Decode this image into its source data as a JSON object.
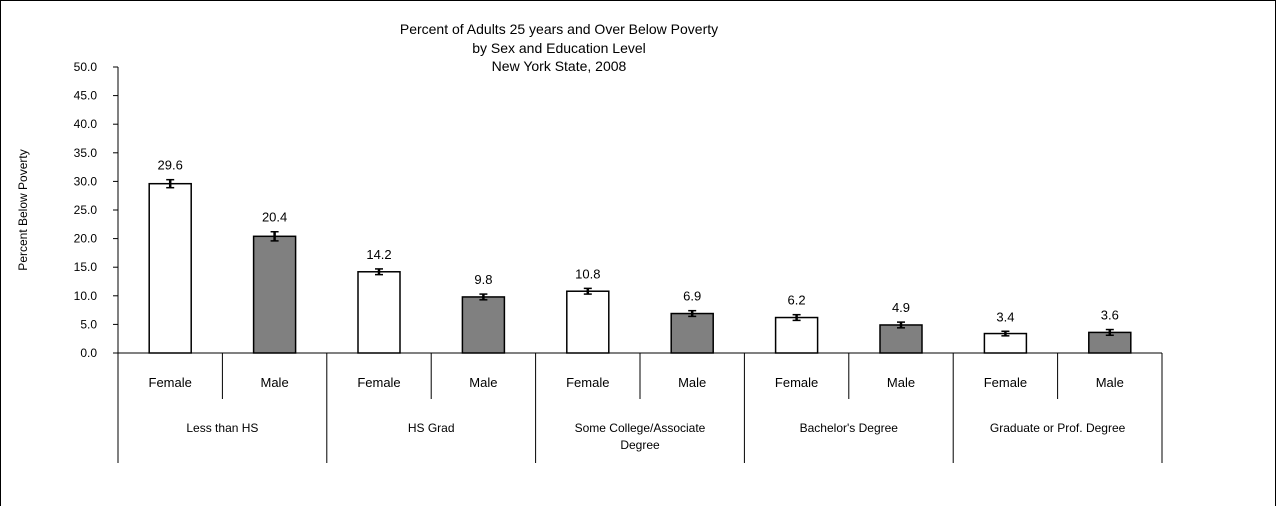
{
  "chart_data": {
    "type": "bar",
    "title": "Percent of Adults 25 years and Over Below Poverty",
    "subtitle_lines": [
      "by Sex and Education Level",
      "New York State, 2008"
    ],
    "ylabel": "Percent Below Poverty",
    "xlabel": "",
    "ylim": [
      0,
      50
    ],
    "ytick_step": 5,
    "ytick_labels": [
      "0.0",
      "5.0",
      "10.0",
      "15.0",
      "20.0",
      "25.0",
      "30.0",
      "35.0",
      "40.0",
      "45.0",
      "50.0"
    ],
    "groups": [
      "Less than HS",
      "HS Grad",
      "Some College/Associate Degree",
      "Bachelor's Degree",
      "Graduate or Prof. Degree"
    ],
    "group_label_lines": [
      [
        "Less than HS"
      ],
      [
        "HS Grad"
      ],
      [
        "Some College/Associate",
        "Degree"
      ],
      [
        "Bachelor's Degree"
      ],
      [
        "Graduate or Prof. Degree"
      ]
    ],
    "bars": [
      {
        "group": "Less than HS",
        "sex": "Female",
        "value": 29.6,
        "label": "29.6",
        "error": 0.7
      },
      {
        "group": "Less than HS",
        "sex": "Male",
        "value": 20.4,
        "label": "20.4",
        "error": 0.8
      },
      {
        "group": "HS Grad",
        "sex": "Female",
        "value": 14.2,
        "label": "14.2",
        "error": 0.5
      },
      {
        "group": "HS Grad",
        "sex": "Male",
        "value": 9.8,
        "label": "9.8",
        "error": 0.5
      },
      {
        "group": "Some College/Associate Degree",
        "sex": "Female",
        "value": 10.8,
        "label": "10.8",
        "error": 0.5
      },
      {
        "group": "Some College/Associate Degree",
        "sex": "Male",
        "value": 6.9,
        "label": "6.9",
        "error": 0.5
      },
      {
        "group": "Bachelor's Degree",
        "sex": "Female",
        "value": 6.2,
        "label": "6.2",
        "error": 0.5
      },
      {
        "group": "Bachelor's Degree",
        "sex": "Male",
        "value": 4.9,
        "label": "4.9",
        "error": 0.5
      },
      {
        "group": "Graduate or Prof. Degree",
        "sex": "Female",
        "value": 3.4,
        "label": "3.4",
        "error": 0.4
      },
      {
        "group": "Graduate or Prof. Degree",
        "sex": "Male",
        "value": 3.6,
        "label": "3.6",
        "error": 0.5
      }
    ],
    "colors": {
      "Female": "#ffffff",
      "Male": "#808080",
      "stroke": "#000000"
    },
    "grid": false,
    "legend": "none"
  }
}
